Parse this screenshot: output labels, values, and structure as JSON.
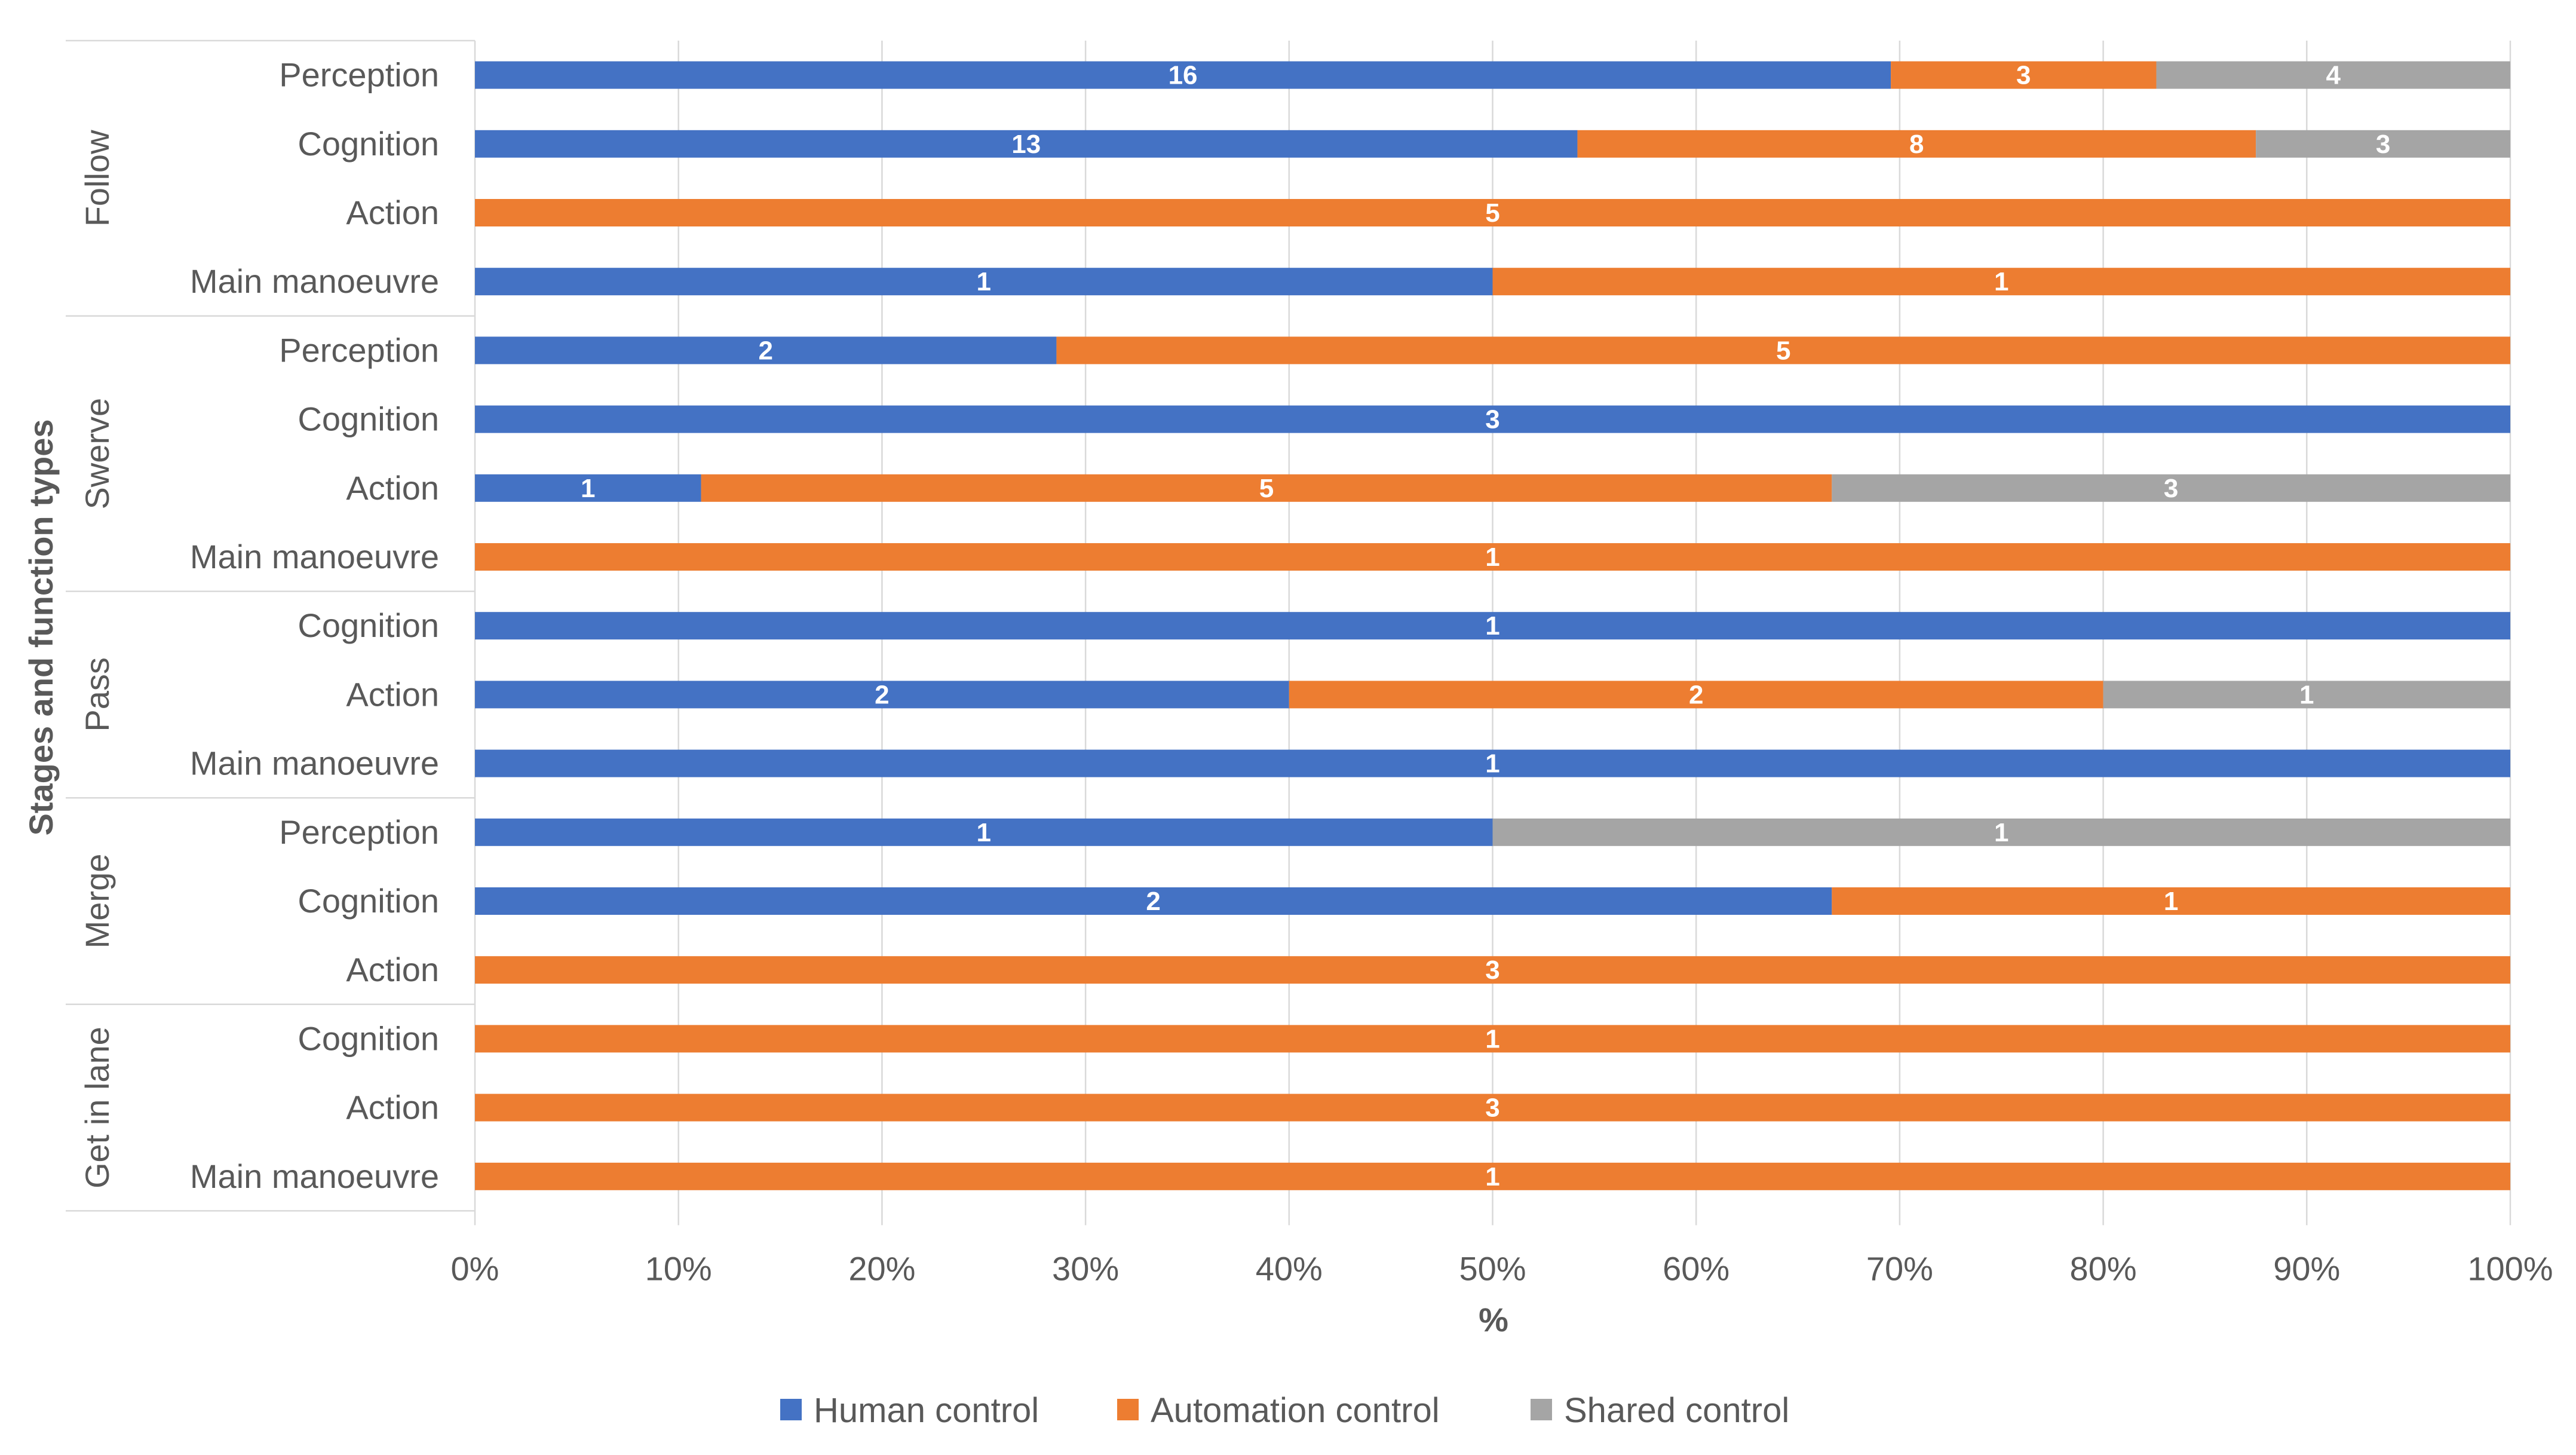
{
  "chart_data": {
    "type": "bar",
    "orientation": "horizontal",
    "stacked": "percent",
    "xlabel": "%",
    "ylabel": "Stages and function types",
    "xlim": [
      0,
      100
    ],
    "x_ticks": [
      "0%",
      "10%",
      "20%",
      "30%",
      "40%",
      "50%",
      "60%",
      "70%",
      "80%",
      "90%",
      "100%"
    ],
    "grid": true,
    "legend_position": "bottom",
    "colors": {
      "Human control": "#4472c4",
      "Automation control": "#ed7d31",
      "Shared control": "#a5a5a5"
    },
    "series_names": [
      "Human control",
      "Automation control",
      "Shared control"
    ],
    "groups": [
      {
        "name": "Follow",
        "rows": [
          {
            "label": "Perception",
            "values": [
              16,
              3,
              4
            ]
          },
          {
            "label": "Cognition",
            "values": [
              13,
              8,
              3
            ]
          },
          {
            "label": "Action",
            "values": [
              0,
              5,
              0
            ]
          },
          {
            "label": "Main manoeuvre",
            "values": [
              1,
              1,
              0
            ]
          }
        ]
      },
      {
        "name": "Swerve",
        "rows": [
          {
            "label": "Perception",
            "values": [
              2,
              5,
              0
            ]
          },
          {
            "label": "Cognition",
            "values": [
              3,
              0,
              0
            ]
          },
          {
            "label": "Action",
            "values": [
              1,
              5,
              3
            ]
          },
          {
            "label": "Main manoeuvre",
            "values": [
              0,
              1,
              0
            ]
          }
        ]
      },
      {
        "name": "Pass",
        "rows": [
          {
            "label": "Cognition",
            "values": [
              1,
              0,
              0
            ]
          },
          {
            "label": "Action",
            "values": [
              2,
              2,
              1
            ]
          },
          {
            "label": "Main manoeuvre",
            "values": [
              1,
              0,
              0
            ]
          }
        ]
      },
      {
        "name": "Merge",
        "rows": [
          {
            "label": "Perception",
            "values": [
              1,
              0,
              1
            ]
          },
          {
            "label": "Cognition",
            "values": [
              2,
              1,
              0
            ]
          },
          {
            "label": "Action",
            "values": [
              0,
              3,
              0
            ]
          }
        ]
      },
      {
        "name": "Get in lane",
        "rows": [
          {
            "label": "Cognition",
            "values": [
              0,
              1,
              0
            ]
          },
          {
            "label": "Action",
            "values": [
              0,
              3,
              0
            ]
          },
          {
            "label": "Main manoeuvre",
            "values": [
              0,
              1,
              0
            ]
          }
        ]
      }
    ]
  }
}
